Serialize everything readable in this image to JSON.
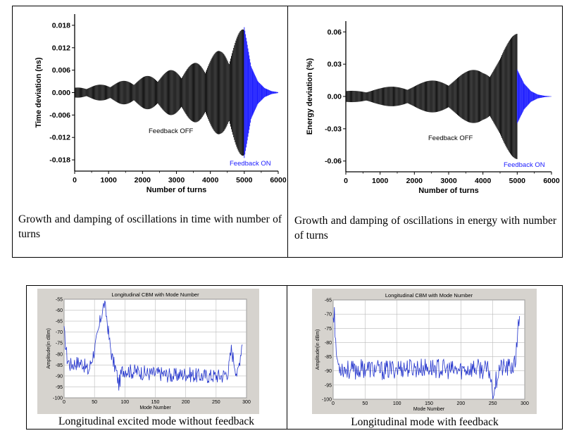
{
  "captions": {
    "top_left": "Growth and damping of oscillations in time with number of turns",
    "top_right": "Growth and damping of oscillations in energy with number of turns",
    "bottom_left": "Longitudinal excited mode without feedback",
    "bottom_right": "Longitudinal mode with feedback"
  },
  "chart_data": [
    {
      "type": "line",
      "title": "",
      "xlabel": "Number of turns",
      "ylabel": "Time deviation (ns)",
      "xlim": [
        0,
        6000
      ],
      "ylim": [
        -0.021,
        0.021
      ],
      "xticks": [
        "0",
        "1000",
        "2000",
        "3000",
        "4000",
        "5000",
        "6000"
      ],
      "yticks": [
        "0.018",
        "0.012",
        "0.006",
        "0.000",
        "-0.006",
        "-0.012",
        "-0.018"
      ],
      "ytick_values": [
        0.018,
        0.012,
        0.006,
        0.0,
        -0.006,
        -0.012,
        -0.018
      ],
      "annotations": [
        "Feedback OFF",
        "Feedback ON"
      ],
      "series": [
        {
          "color": "#000000",
          "x": [
            0,
            800,
            1600,
            2200,
            2900,
            3500,
            4300,
            5000
          ],
          "envelope": [
            0.0013,
            0.0022,
            0.0034,
            0.0046,
            0.0062,
            0.0078,
            0.0115,
            0.0175
          ]
        },
        {
          "color": "#1a1aff",
          "x": [
            5000,
            5200,
            5400,
            5600,
            5800,
            6000
          ],
          "envelope": [
            0.0175,
            0.007,
            0.003,
            0.0012,
            0.0004,
            0.0001
          ]
        }
      ]
    },
    {
      "type": "line",
      "title": "",
      "xlabel": "Number of turns",
      "ylabel": "Energy deviation (%)",
      "xlim": [
        0,
        6000
      ],
      "ylim": [
        -0.07,
        0.07
      ],
      "xticks": [
        "0",
        "1000",
        "2000",
        "3000",
        "4000",
        "5000",
        "6000"
      ],
      "yticks": [
        "0.06",
        "0.03",
        "0.00",
        "-0.03",
        "-0.06"
      ],
      "ytick_values": [
        0.06,
        0.03,
        0.0,
        -0.03,
        -0.06
      ],
      "annotations": [
        "Feedback OFF",
        "Feedback ON"
      ],
      "series": [
        {
          "color": "#000000",
          "x": [
            0,
            1000,
            2000,
            3000,
            4000,
            4500,
            5000
          ],
          "envelope": [
            0.005,
            0.008,
            0.012,
            0.018,
            0.028,
            0.04,
            0.062
          ]
        },
        {
          "color": "#1a1aff",
          "x": [
            5000,
            5200,
            5400,
            5600,
            5800,
            6000
          ],
          "envelope": [
            0.025,
            0.012,
            0.005,
            0.0018,
            0.0006,
            0.0001
          ]
        }
      ]
    },
    {
      "type": "line",
      "title": "Longitudinal CBM with Mode Number",
      "xlabel": "Mode Number",
      "ylabel": "Amplitude(in dBm)",
      "xlim": [
        0,
        300
      ],
      "ylim": [
        -100,
        -55
      ],
      "xticks": [
        "0",
        "50",
        "100",
        "150",
        "200",
        "250",
        "300"
      ],
      "yticks": [
        "-55",
        "-60",
        "-65",
        "-70",
        "-75",
        "-80",
        "-85",
        "-90",
        "-95",
        "-100"
      ],
      "ytick_values": [
        -55,
        -60,
        -65,
        -70,
        -75,
        -80,
        -85,
        -90,
        -95,
        -100
      ],
      "series": [
        {
          "color": "#2233cc",
          "x": [
            0,
            5,
            10,
            20,
            30,
            40,
            50,
            55,
            60,
            63,
            66,
            70,
            75,
            80,
            85,
            90,
            95,
            100,
            110,
            120,
            140,
            160,
            180,
            200,
            220,
            240,
            260,
            270,
            275,
            280,
            285,
            290,
            293
          ],
          "y": [
            -70,
            -82,
            -85,
            -84,
            -84,
            -88,
            -78,
            -72,
            -64,
            -60,
            -57,
            -63,
            -75,
            -83,
            -87,
            -94,
            -88,
            -87,
            -88,
            -88,
            -89,
            -89,
            -90,
            -89,
            -90,
            -90,
            -90,
            -88,
            -78,
            -84,
            -90,
            -80,
            -74
          ]
        }
      ]
    },
    {
      "type": "line",
      "title": "Longitudinal CBM with Mode Number",
      "xlabel": "Mode Number",
      "ylabel": "Amplitude(in dBm)",
      "xlim": [
        0,
        300
      ],
      "ylim": [
        -100,
        -65
      ],
      "xticks": [
        "0",
        "50",
        "100",
        "150",
        "200",
        "250",
        "300"
      ],
      "yticks": [
        "-65",
        "-70",
        "-75",
        "-80",
        "-85",
        "-90",
        "-95",
        "-100"
      ],
      "ytick_values": [
        -65,
        -70,
        -75,
        -80,
        -85,
        -90,
        -95,
        -100
      ],
      "series": [
        {
          "color": "#2233cc",
          "x": [
            0,
            2,
            4,
            8,
            15,
            30,
            50,
            80,
            100,
            130,
            160,
            190,
            220,
            245,
            250,
            260,
            275,
            285,
            288,
            290,
            292
          ],
          "y": [
            -70,
            -69,
            -82,
            -88,
            -89,
            -90,
            -89,
            -90,
            -89,
            -89,
            -89,
            -90,
            -89,
            -90,
            -98,
            -89,
            -89,
            -88,
            -80,
            -71,
            -73
          ]
        }
      ]
    }
  ]
}
